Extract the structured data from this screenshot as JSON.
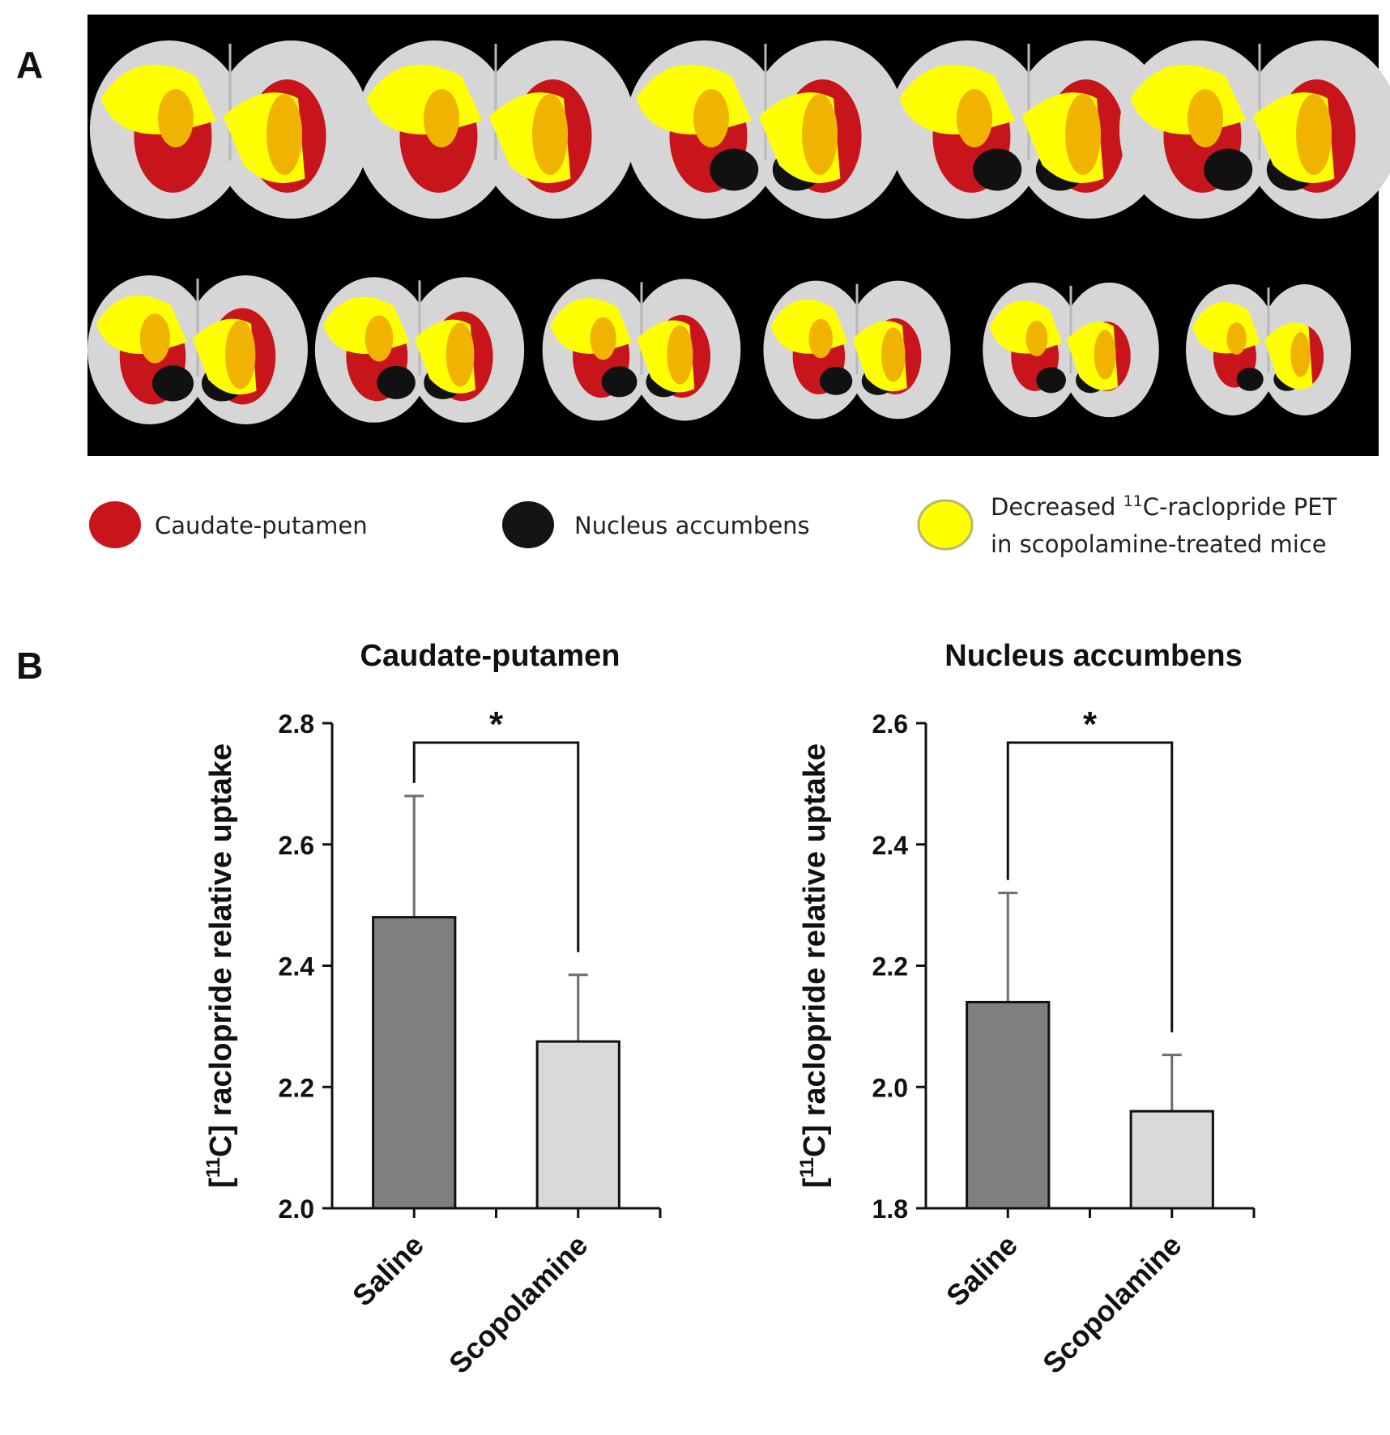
{
  "panel_a": {
    "letter": "A",
    "legend": [
      {
        "label": "Caudate-putamen",
        "color": "#c8151b"
      },
      {
        "label": "Nucleus accumbens",
        "color": "#111111"
      },
      {
        "label_line1_pre": "Decreased ",
        "label_line1_sup": "11",
        "label_line1_post": "C-raclopride PET",
        "label_line2": "in scopolamine-treated mice",
        "color": "#ffff00"
      }
    ],
    "colors": {
      "background": "#000000",
      "brain": "#d6d6d6",
      "caudate": "#c8151b",
      "overlap": "#f0b400",
      "decreased": "#ffff00",
      "accumbens": "#111111"
    }
  },
  "panel_b": {
    "letter": "B",
    "ylabel_pre": "[",
    "ylabel_sup": "11",
    "ylabel_post": "C] raclopride relative uptake"
  },
  "chart_data": [
    {
      "type": "bar",
      "title": "Caudate-putamen",
      "categories": [
        "Saline",
        "Scopolamine"
      ],
      "values": [
        2.48,
        2.275
      ],
      "errors": [
        0.2,
        0.11
      ],
      "colors": [
        "#7f7f7f",
        "#d9d9d9"
      ],
      "ylim": [
        2.0,
        2.8
      ],
      "yticks": [
        "2.0",
        "2.2",
        "2.4",
        "2.6",
        "2.8"
      ],
      "ylabel": "[11C] raclopride relative uptake",
      "significance": "*"
    },
    {
      "type": "bar",
      "title": "Nucleus accumbens",
      "categories": [
        "Saline",
        "Scopolamine"
      ],
      "values": [
        2.14,
        1.96
      ],
      "errors": [
        0.18,
        0.093
      ],
      "colors": [
        "#7f7f7f",
        "#d9d9d9"
      ],
      "ylim": [
        1.8,
        2.6
      ],
      "yticks": [
        "1.8",
        "2.0",
        "2.2",
        "2.4",
        "2.6"
      ],
      "ylabel": "[11C] raclopride relative uptake",
      "significance": "*"
    }
  ]
}
